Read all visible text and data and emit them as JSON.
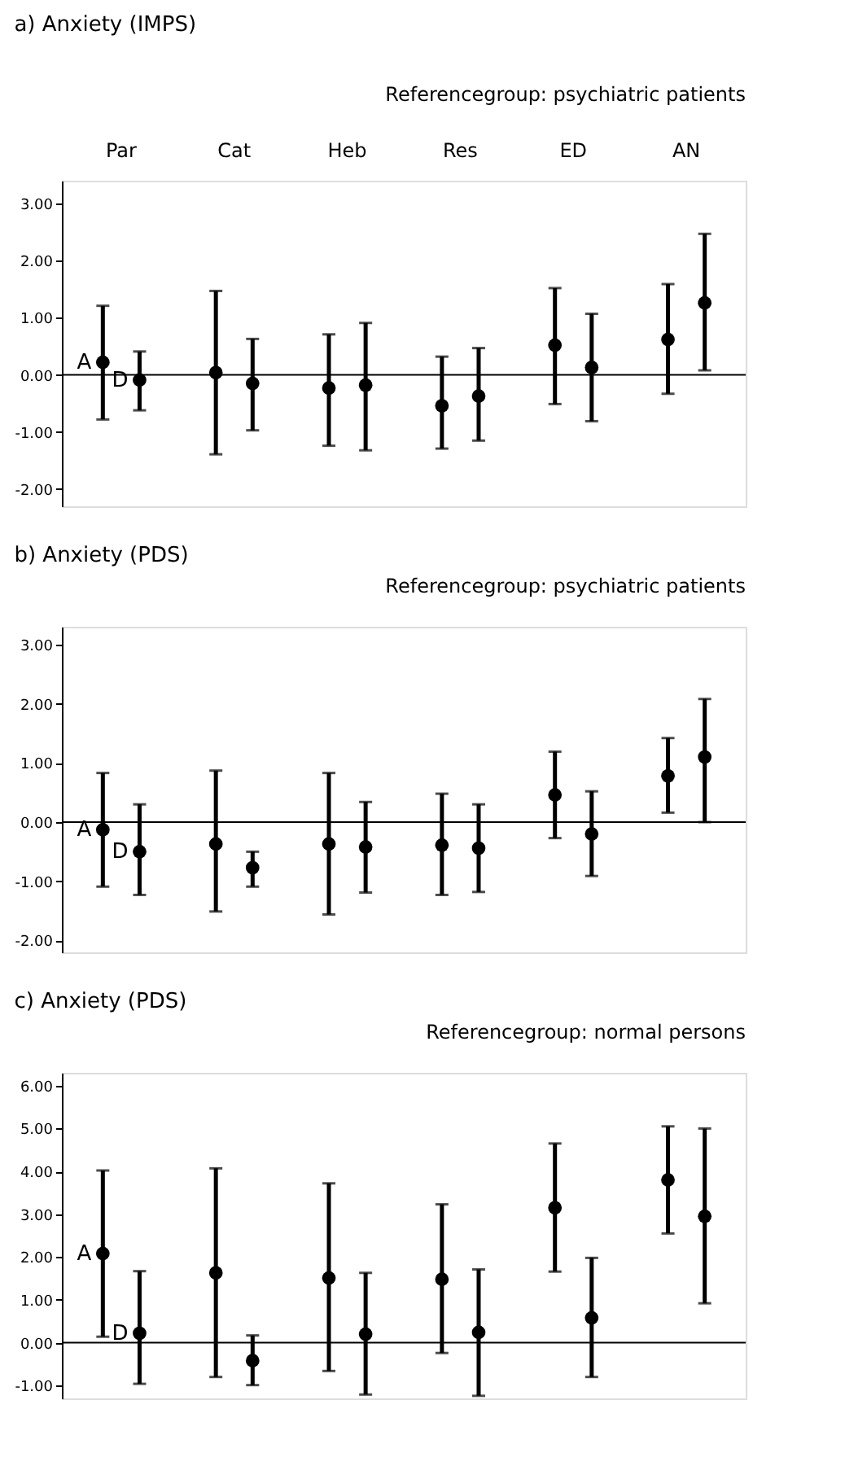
{
  "chart_data": [
    {
      "type": "scatter",
      "title": "a) Anxiety (IMPS)",
      "annotations": [
        "Referencegroup: psychiatric patients"
      ],
      "categories": [
        "Par",
        "Cat",
        "Heb",
        "Res",
        "ED",
        "AN"
      ],
      "ylim": [
        -2.3,
        3.4
      ],
      "yticks": [
        {
          "value": -2,
          "label": "-2.00"
        },
        {
          "value": -1,
          "label": "-1.00"
        },
        {
          "value": 0,
          "label": "0.00"
        },
        {
          "value": 1,
          "label": "1.00"
        },
        {
          "value": 2,
          "label": "2.00"
        },
        {
          "value": 3,
          "label": "3.00"
        }
      ],
      "grid": false,
      "marker": "circle",
      "ref_lines": [
        {
          "axis": "y",
          "value": 0
        }
      ],
      "series": [
        {
          "name": "A",
          "color": "#000000",
          "values": [
            0.22,
            0.04,
            -0.23,
            -0.54,
            0.52,
            0.62
          ],
          "errors": [
            [
              -0.78,
              1.21
            ],
            [
              -1.39,
              1.47
            ],
            [
              -1.24,
              0.71
            ],
            [
              -1.29,
              0.32
            ],
            [
              -0.51,
              1.52
            ],
            [
              -0.33,
              1.59
            ]
          ]
        },
        {
          "name": "D",
          "color": "#000000",
          "values": [
            -0.09,
            -0.15,
            -0.18,
            -0.37,
            0.13,
            1.26
          ],
          "errors": [
            [
              -0.62,
              0.41
            ],
            [
              -0.97,
              0.63
            ],
            [
              -1.32,
              0.91
            ],
            [
              -1.15,
              0.47
            ],
            [
              -0.81,
              1.07
            ],
            [
              0.08,
              2.47
            ]
          ]
        }
      ]
    },
    {
      "type": "scatter",
      "title": "b) Anxiety (PDS)",
      "annotations": [
        "Referencegroup: psychiatric patients"
      ],
      "categories": [
        null,
        null,
        null,
        null,
        null,
        null
      ],
      "tick_labels": "y",
      "ylim": [
        -2.2,
        3.3
      ],
      "yticks": [
        {
          "value": -2,
          "label": "-2.00"
        },
        {
          "value": -1,
          "label": "-1.00"
        },
        {
          "value": 0,
          "label": "0.00"
        },
        {
          "value": 1,
          "label": "1.00"
        },
        {
          "value": 2,
          "label": "2.00"
        },
        {
          "value": 3,
          "label": "3.00"
        }
      ],
      "grid": false,
      "marker": "circle",
      "ref_lines": [
        {
          "axis": "y",
          "value": 0
        }
      ],
      "series": [
        {
          "name": "A",
          "color": "#000000",
          "values": [
            -0.13,
            -0.37,
            -0.37,
            -0.39,
            0.46,
            0.78
          ],
          "errors": [
            [
              -1.09,
              0.83
            ],
            [
              -1.51,
              0.87
            ],
            [
              -1.56,
              0.83
            ],
            [
              -1.23,
              0.48
            ],
            [
              -0.27,
              1.19
            ],
            [
              0.16,
              1.42
            ]
          ]
        },
        {
          "name": "D",
          "color": "#000000",
          "values": [
            -0.5,
            -0.77,
            -0.42,
            -0.44,
            -0.2,
            1.1
          ],
          "errors": [
            [
              -1.23,
              0.3
            ],
            [
              -1.09,
              -0.5
            ],
            [
              -1.19,
              0.34
            ],
            [
              -1.18,
              0.3
            ],
            [
              -0.91,
              0.52
            ],
            [
              0.0,
              2.08
            ]
          ]
        }
      ]
    },
    {
      "type": "scatter",
      "title": "c) Anxiety (PDS)",
      "annotations": [
        "Referencegroup: normal persons"
      ],
      "categories": [
        null,
        null,
        null,
        null,
        null,
        null
      ],
      "tick_labels": "y",
      "ylim": [
        -1.3,
        6.3
      ],
      "yticks": [
        {
          "value": -1,
          "label": "-1.00"
        },
        {
          "value": 0,
          "label": "0.00"
        },
        {
          "value": 1,
          "label": "1.00"
        },
        {
          "value": 2,
          "label": "2.00"
        },
        {
          "value": 3,
          "label": "3.00"
        },
        {
          "value": 4,
          "label": "4.00"
        },
        {
          "value": 5,
          "label": "5.00"
        },
        {
          "value": 6,
          "label": "6.00"
        }
      ],
      "grid": false,
      "marker": "circle",
      "ref_lines": [
        {
          "axis": "y",
          "value": 0
        }
      ],
      "series": [
        {
          "name": "A",
          "color": "#000000",
          "values": [
            2.08,
            1.63,
            1.51,
            1.48,
            3.15,
            3.8
          ],
          "errors": [
            [
              0.14,
              4.02
            ],
            [
              -0.8,
              4.07
            ],
            [
              -0.66,
              3.72
            ],
            [
              -0.24,
              3.23
            ],
            [
              1.66,
              4.65
            ],
            [
              2.55,
              5.05
            ]
          ]
        },
        {
          "name": "D",
          "color": "#000000",
          "values": [
            0.22,
            -0.42,
            0.2,
            0.24,
            0.58,
            2.95
          ],
          "errors": [
            [
              -0.96,
              1.67
            ],
            [
              -0.99,
              0.17
            ],
            [
              -1.21,
              1.63
            ],
            [
              -1.24,
              1.71
            ],
            [
              -0.8,
              1.98
            ],
            [
              0.92,
              5.0
            ]
          ]
        }
      ]
    }
  ]
}
